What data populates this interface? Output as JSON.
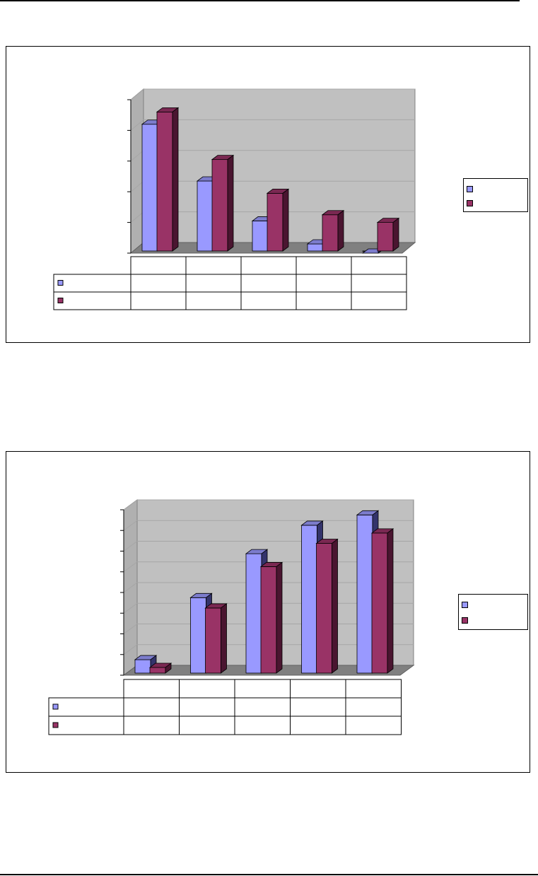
{
  "colors": {
    "series1": "#9999ff",
    "series1_top": "#7c7ccc",
    "series1_side": "#33336b",
    "series2": "#993366",
    "series2_top": "#7a2852",
    "series2_side": "#4a1530",
    "wall": "#c0c0c0",
    "floor": "#808080",
    "gridline": "#a6a6a6"
  },
  "chart_data": [
    {
      "type": "bar",
      "title": "",
      "xlabel": "",
      "ylabel": "",
      "categories": [
        "",
        "",
        "",
        "",
        ""
      ],
      "series": [
        {
          "values": [
            42,
            23.5,
            10.5,
            3,
            0
          ]
        },
        {
          "values": [
            46,
            30.5,
            19.5,
            12.5,
            10
          ]
        }
      ],
      "ylim": [
        0,
        50
      ],
      "grid": true,
      "legend": "right",
      "data_table": true
    },
    {
      "type": "bar",
      "title": "",
      "xlabel": "",
      "ylabel": "",
      "categories": [
        "",
        "",
        "",
        "",
        ""
      ],
      "series": [
        {
          "values": [
            6,
            30,
            47,
            58,
            62
          ]
        },
        {
          "values": [
            3,
            26,
            42,
            51,
            55
          ]
        }
      ],
      "ylim": [
        0,
        64
      ],
      "grid": true,
      "legend": "right",
      "data_table": true
    }
  ]
}
